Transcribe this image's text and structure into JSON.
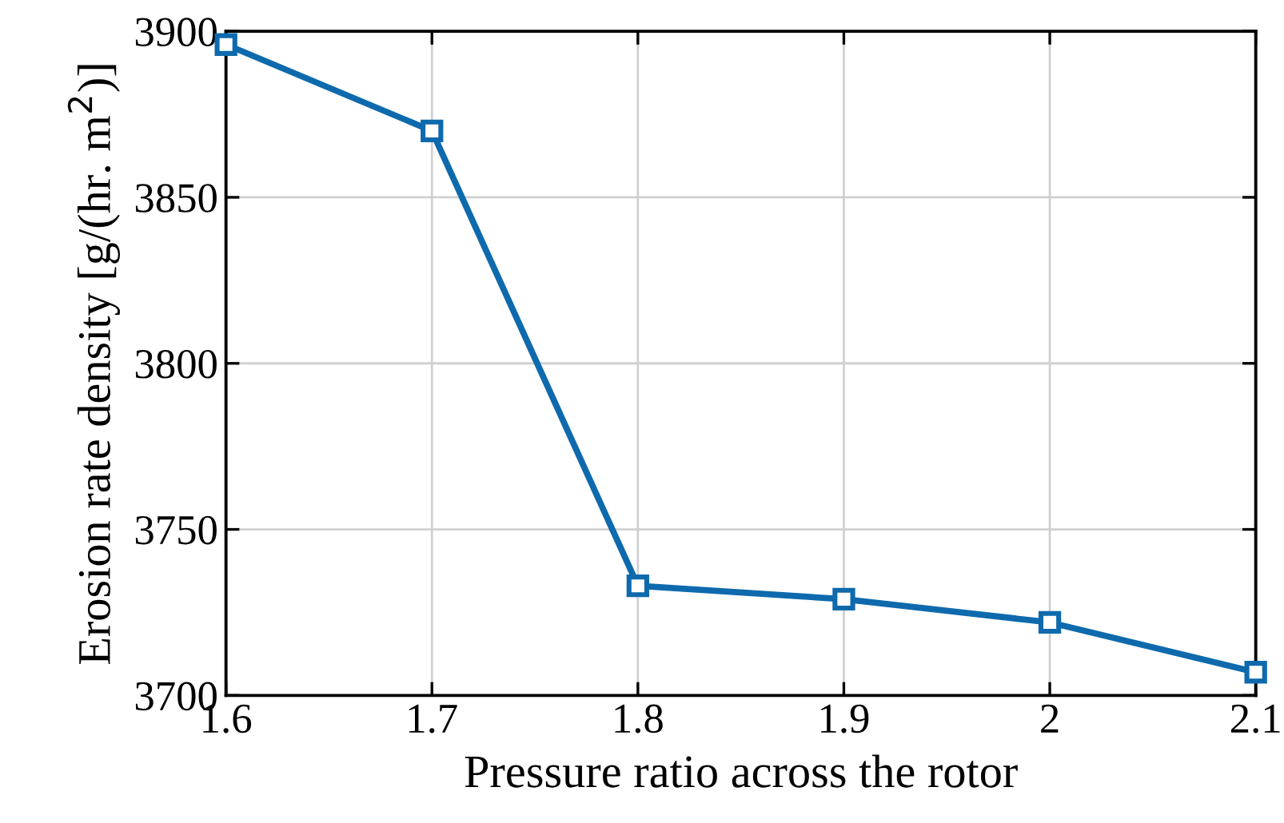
{
  "chart_data": {
    "type": "line",
    "xlabel": "Pressure ratio across the rotor",
    "ylabel": "Erosion rate density [g/(hr. m$^{2}$)]",
    "x": [
      1.6,
      1.7,
      1.8,
      1.9,
      2.0,
      2.1
    ],
    "series": [
      {
        "color": "#0e6aad",
        "values": [
          3896,
          3870,
          3733,
          3729,
          3722,
          3707
        ]
      }
    ],
    "xlim": [
      1.6,
      2.1
    ],
    "xticks": [
      1.6,
      1.7,
      1.8,
      1.9,
      2,
      2.1
    ],
    "ylim": [
      3700,
      3900
    ],
    "yticks": [
      3700,
      3750,
      3800,
      3850,
      3900
    ],
    "grid": true,
    "marker": "square",
    "line_style": "solid"
  }
}
